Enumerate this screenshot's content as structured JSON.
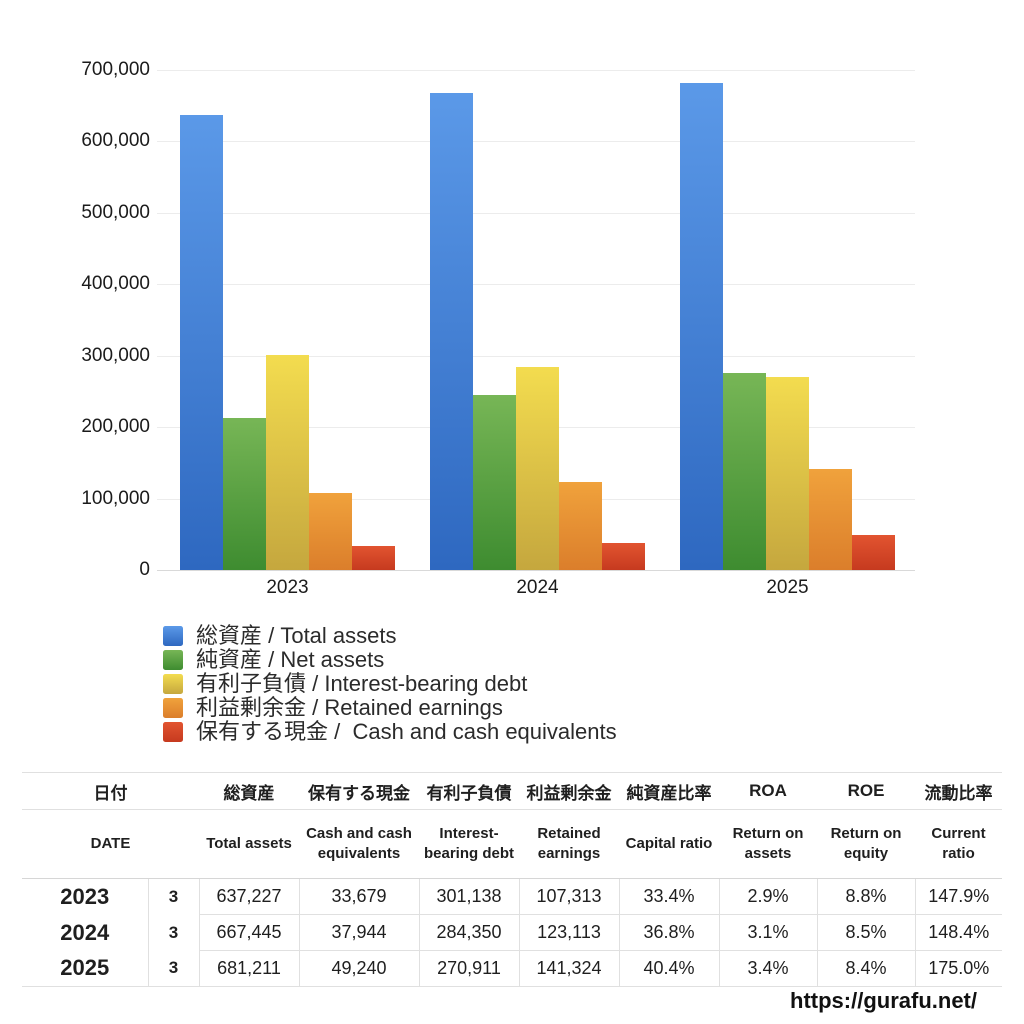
{
  "chart_data": {
    "type": "bar",
    "categories": [
      "2023",
      "2024",
      "2025"
    ],
    "series": [
      {
        "key": "total-assets",
        "name": "総資産 / Total assets",
        "color_top": "#5B99E8",
        "color_bottom": "#2E68C0",
        "values": [
          637227,
          667445,
          681211
        ]
      },
      {
        "key": "net-assets",
        "name": "純資産 / Net assets",
        "color_top": "#77B656",
        "color_bottom": "#3E8C30",
        "values": [
          212834,
          245620,
          275209
        ]
      },
      {
        "key": "interest-bearing-debt",
        "name": "有利子負債 / Interest-bearing debt",
        "color_top": "#F3DC4F",
        "color_bottom": "#C5A73E",
        "values": [
          301138,
          284350,
          270911
        ]
      },
      {
        "key": "retained-earnings",
        "name": "利益剰余金 / Retained earnings",
        "color_top": "#F0A23C",
        "color_bottom": "#DB7E2B",
        "values": [
          107313,
          123113,
          141324
        ]
      },
      {
        "key": "cash",
        "name": "保有する現金 /  Cash and cash equivalents",
        "color_top": "#E25430",
        "color_bottom": "#C63A1F",
        "values": [
          33679,
          37944,
          49240
        ]
      }
    ],
    "ylim": [
      0,
      700000
    ],
    "ytick_labels": [
      "0",
      "100,000",
      "200,000",
      "300,000",
      "400,000",
      "500,000",
      "600,000",
      "700,000"
    ],
    "grid": true,
    "legend_position": "below-left"
  },
  "table": {
    "header_ja": [
      "日付",
      "総資産",
      "保有する現金",
      "有利子負債",
      "利益剰余金",
      "純資産比率",
      "ROA",
      "ROE",
      "流動比率"
    ],
    "header_en": [
      "DATE",
      "Total assets",
      "Cash and cash equivalents",
      "Interest-bearing debt",
      "Retained earnings",
      "Capital ratio",
      "Return on assets",
      "Return on equity",
      "Current ratio"
    ],
    "column_keys": [
      "year",
      "month",
      "total-assets",
      "cash",
      "interest-bearing-debt",
      "retained-earnings",
      "capital-ratio",
      "roa",
      "roe",
      "current-ratio"
    ],
    "rows": [
      [
        "2023",
        "3",
        "637,227",
        "33,679",
        "301,138",
        "107,313",
        "33.4%",
        "2.9%",
        "8.8%",
        "147.9%"
      ],
      [
        "2024",
        "3",
        "667,445",
        "37,944",
        "284,350",
        "123,113",
        "36.8%",
        "3.1%",
        "8.5%",
        "148.4%"
      ],
      [
        "2025",
        "3",
        "681,211",
        "49,240",
        "270,911",
        "141,324",
        "40.4%",
        "3.4%",
        "8.4%",
        "175.0%"
      ]
    ]
  },
  "footer": {
    "url": "https://gurafu.net/"
  }
}
